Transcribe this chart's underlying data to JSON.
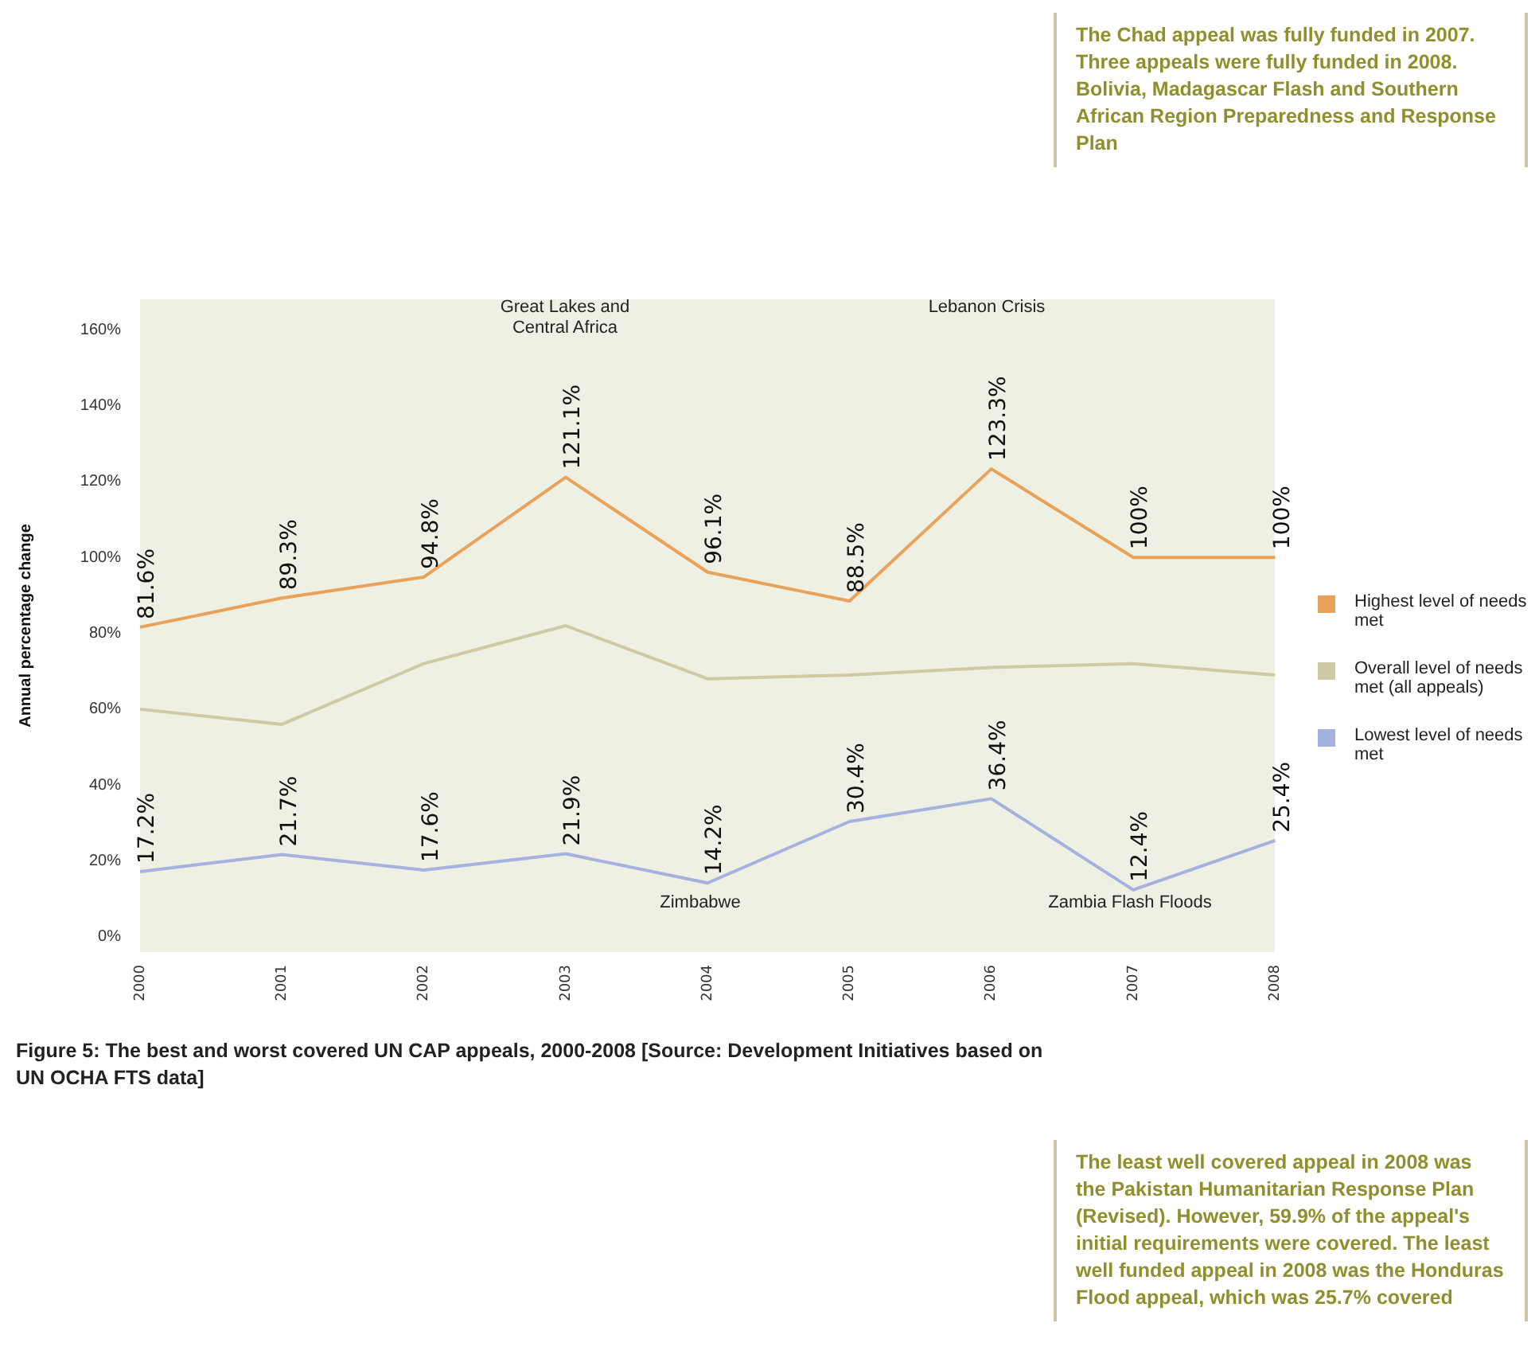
{
  "chart_data": {
    "type": "line",
    "title": "Figure 5: The best and worst covered UN CAP appeals, 2000-2008 [Source: Development Initiatives based on UN OCHA FTS data]",
    "ylabel": "Annual percentage change",
    "categories": [
      "2000",
      "2001",
      "2002",
      "2003",
      "2004",
      "2005",
      "2006",
      "2007",
      "2008"
    ],
    "series": [
      {
        "name": "Highest level of needs met",
        "color": "#e8a25a",
        "values": [
          81.6,
          89.3,
          94.8,
          121.1,
          96.1,
          88.5,
          123.3,
          100,
          100
        ],
        "value_labels": [
          "81.6%",
          "89.3%",
          "94.8%",
          "121.1%",
          "96.1%",
          "88.5%",
          "123.3%",
          "100%",
          "100%"
        ]
      },
      {
        "name": "Overall level of needs met (all appeals)",
        "color": "#cdcaa4",
        "values": [
          60,
          56,
          72,
          82,
          68,
          69,
          71,
          72,
          69
        ]
      },
      {
        "name": "Lowest level of needs met",
        "color": "#a5b1de",
        "values": [
          17.2,
          21.7,
          17.6,
          21.9,
          14.2,
          30.4,
          36.4,
          12.4,
          25.4
        ],
        "value_labels": [
          "17.2%",
          "21.7%",
          "17.6%",
          "21.9%",
          "14.2%",
          "30.4%",
          "36.4%",
          "12.4%",
          "25.4%"
        ]
      }
    ],
    "ylim": [
      -4,
      168
    ],
    "yticks": [
      {
        "value": 0,
        "label": "0%"
      },
      {
        "value": 20,
        "label": "20%"
      },
      {
        "value": 40,
        "label": "40%"
      },
      {
        "value": 60,
        "label": "60%"
      },
      {
        "value": 80,
        "label": "80%"
      },
      {
        "value": 100,
        "label": "100%"
      },
      {
        "value": 120,
        "label": "120%"
      },
      {
        "value": 140,
        "label": "140%"
      },
      {
        "value": 160,
        "label": "160%"
      }
    ],
    "grid": false,
    "legend": "right",
    "marker": "none",
    "line_style": "solid",
    "annotations": [
      "Great Lakes and Central Africa",
      "Lebanon Crisis",
      "Zimbabwe",
      "Zambia Flash Floods",
      "The Chad appeal was fully funded in 2007. Three appeals were fully funded in 2008. Bolivia, Madagascar Flash and Southern African Region Preparedness and Response Plan",
      "The least well covered appeal in 2008 was the Pakistan Humanitarian Response Plan (Revised). However, 59.9% of the appeal's initial requirements were covered. The least well funded appeal in 2008 was the Honduras Flood appeal, which was 25.7% covered"
    ]
  }
}
